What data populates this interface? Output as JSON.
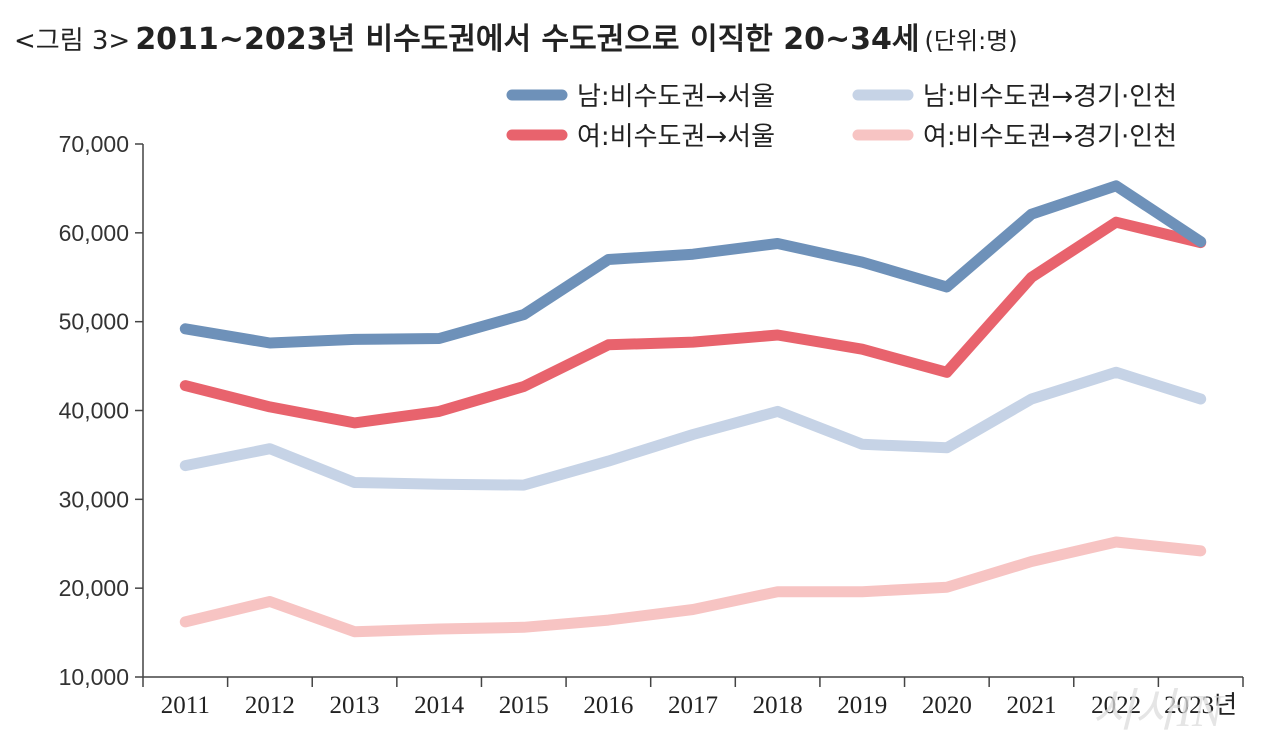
{
  "title": {
    "tag": "<그림 3>",
    "main": "2011~2023년 비수도권에서 수도권으로 이직한 20~34세",
    "unit": "(단위:명)"
  },
  "watermark": "시사IN",
  "chart_data": {
    "type": "line",
    "categories": [
      "2011",
      "2012",
      "2013",
      "2014",
      "2015",
      "2016",
      "2017",
      "2018",
      "2019",
      "2020",
      "2021",
      "2022",
      "2023년"
    ],
    "ylim": [
      10000,
      70000
    ],
    "yticks": [
      10000,
      20000,
      30000,
      40000,
      50000,
      60000,
      70000
    ],
    "ytick_labels": [
      "10,000",
      "20,000",
      "30,000",
      "40,000",
      "50,000",
      "60,000",
      "70,000"
    ],
    "grid": false,
    "legend_position": "top-right",
    "series": [
      {
        "name": "남:비수도권→서울",
        "color": "#6e91b9",
        "values": [
          49200,
          47600,
          48000,
          48100,
          50800,
          57000,
          57600,
          58800,
          56700,
          53900,
          62100,
          65300,
          59000
        ]
      },
      {
        "name": "여:비수도권→서울",
        "color": "#e8636d",
        "values": [
          42800,
          40400,
          38600,
          39900,
          42700,
          47400,
          47700,
          48500,
          46900,
          44300,
          55000,
          61200,
          58900
        ]
      },
      {
        "name": "남:비수도권→경기·인천",
        "color": "#c6d3e6",
        "values": [
          33800,
          35700,
          31900,
          31700,
          31600,
          34300,
          37300,
          39900,
          36200,
          35800,
          41300,
          44300,
          41300
        ]
      },
      {
        "name": "여:비수도권→경기·인천",
        "color": "#f7c4c3",
        "values": [
          16200,
          18500,
          15100,
          15400,
          15600,
          16400,
          17600,
          19600,
          19600,
          20100,
          23000,
          25200,
          24200
        ]
      }
    ]
  }
}
